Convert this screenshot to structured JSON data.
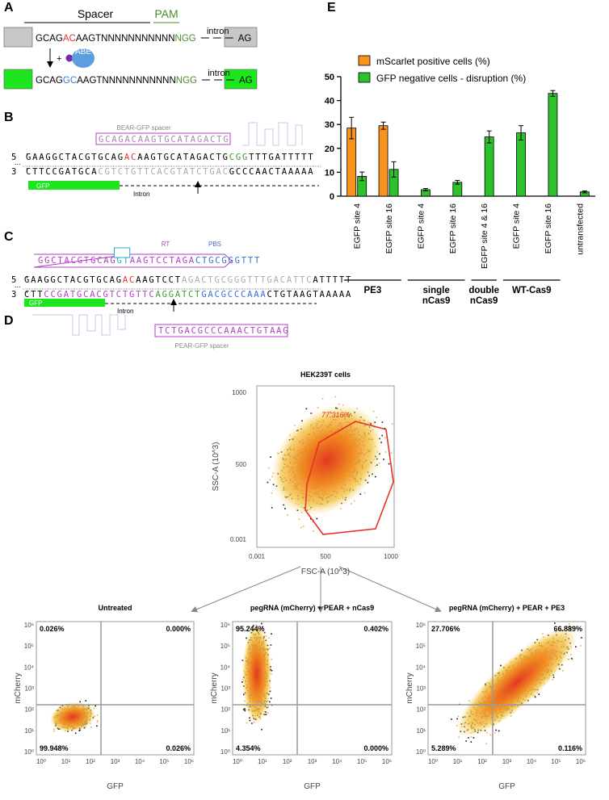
{
  "panel_labels": [
    "A",
    "B",
    "C",
    "D",
    "E"
  ],
  "panel_a": {
    "spacer": "Spacer",
    "pam": "PAM",
    "intron": "intron",
    "end": "AG",
    "plus": "+",
    "enzyme": "ABE",
    "row1": [
      {
        "text": "GCAG",
        "color": "#000000"
      },
      {
        "text": "AC",
        "color": "#e8312a"
      },
      {
        "text": "AAGTNNNNNNNNNNN",
        "color": "#000000"
      },
      {
        "text": "NGG",
        "color": "#4a8a2a"
      }
    ],
    "row2": [
      {
        "text": "GCAG",
        "color": "#000000"
      },
      {
        "text": "GC",
        "color": "#3a7fd5"
      },
      {
        "text": "AAGTNNNNNNNNNNN",
        "color": "#000000"
      },
      {
        "text": "NGG",
        "color": "#4a8a2a"
      }
    ]
  },
  "panel_b": {
    "spacer_label": "BEAR-GFP spacer",
    "spacer_seq": "GCAGACAAGTGCATAGACTG",
    "five": "5 '",
    "three": "3 '",
    "ellipsis": "...",
    "top": [
      {
        "text": "GAAGGCTACGTGCAG",
        "color": "#000000"
      },
      {
        "text": "AC",
        "color": "#e8312a"
      },
      {
        "text": "AAGTGCATAGACTG",
        "color": "#000000"
      },
      {
        "text": "CGG",
        "color": "#3a9a2a"
      },
      {
        "text": "TTTGATTTTT",
        "color": "#000000"
      }
    ],
    "bottom": [
      {
        "text": "CTTCCGATGCA",
        "color": "#000000"
      },
      {
        "text": "CGTCTGTTCACGTATCTGAC",
        "color": "#aaaaaa"
      },
      {
        "text": "GCCCAACTAAAAA",
        "color": "#000000"
      }
    ],
    "gfp": "GFP",
    "intron": "Intron"
  },
  "panel_c": {
    "rt": "RT",
    "pbs": "PBS",
    "peg": [
      {
        "text": "GGCTACGTGCAG",
        "color": "#b23fc4"
      },
      {
        "text": "GT",
        "color": "#2aa7c9"
      },
      {
        "text": "AAGTCCTAGA",
        "color": "#b23fc4"
      },
      {
        "text": "CTGCGGGTTT",
        "color": "#3a6fd5"
      }
    ],
    "five": "5 '",
    "three": "3 '",
    "ellipsis": "...",
    "top": [
      {
        "text": "GAAGGCTACGTGCAG",
        "color": "#000000"
      },
      {
        "text": "AC",
        "color": "#e8312a"
      },
      {
        "text": "AAGTCCT",
        "color": "#000000"
      },
      {
        "text": "AGACTGCGGGTTTGACATTC",
        "color": "#aaaaaa"
      },
      {
        "text": "ATTTTT",
        "color": "#000000"
      }
    ],
    "bottom": [
      {
        "text": "CTT",
        "color": "#000000"
      },
      {
        "text": "CCGATGCACGTCTGTTC",
        "color": "#b23fc4"
      },
      {
        "text": "AGGATCT",
        "color": "#3a9a2a"
      },
      {
        "text": "GACGCCCAAA",
        "color": "#3a6fd5"
      },
      {
        "text": "CTGTAAGTAAAAA",
        "color": "#000000"
      }
    ],
    "gfp": "GFP",
    "intron": "Intron",
    "pear_seq": "TCTGACGCCCAAACTGTAAG",
    "pear_label": "PEAR-GFP spacer"
  },
  "panel_d": {
    "main": {
      "title": "HEK239T cells",
      "gate": "77.316%",
      "xlabel": "FSC-A (10^3)",
      "ylabel": "SSC-A (10^3)",
      "xticks": [
        "0.001",
        "500",
        "1000"
      ],
      "yticks": [
        "0.001",
        "500",
        "1000"
      ]
    },
    "plots": [
      {
        "title": "Untreated",
        "quadrants": [
          "0.026%",
          "0.000%",
          "99.948%",
          "0.026%"
        ]
      },
      {
        "title": "pegRNA (mCherry) + PEAR + nCas9",
        "quadrants": [
          "95.244%",
          "0.402%",
          "4.354%",
          "0.000%"
        ]
      },
      {
        "title": "pegRNA (mCherry) + PEAR + PE3",
        "quadrants": [
          "27.706%",
          "66.889%",
          "5.289%",
          "0.116%"
        ]
      }
    ],
    "xlabel": "GFP",
    "ylabel": "mCherry",
    "ticks": [
      "10⁰",
      "10¹",
      "10²",
      "10³",
      "10⁴",
      "10⁵",
      "10⁶"
    ]
  },
  "chart_data": {
    "type": "bar",
    "ylim": [
      0,
      50
    ],
    "yticks": [
      0,
      10,
      20,
      30,
      40,
      50
    ],
    "categories": [
      "EGFP site 4",
      "EGFP site 16",
      "EGFP site 4",
      "EGFP site 16",
      "EGFP site 4 & 16",
      "EGFP site 4",
      "EGFP site 16",
      "untransfected"
    ],
    "series": [
      {
        "name": "mScarlet positive cells (%)",
        "color": "#f7941d",
        "values": [
          28.5,
          29.5,
          0,
          0,
          0,
          0,
          0,
          0
        ],
        "errors": [
          4.5,
          1.5,
          0,
          0,
          0,
          0,
          0,
          0
        ]
      },
      {
        "name": "GFP negative cells - disruption (%)",
        "color": "#2bc22b",
        "values": [
          8.3,
          11.2,
          2.7,
          5.8,
          24.8,
          26.5,
          43.0,
          1.8
        ],
        "errors": [
          1.8,
          3.2,
          0.5,
          0.8,
          2.5,
          3.0,
          1.2,
          0.4
        ]
      }
    ],
    "groups": [
      {
        "label": [
          "PE3"
        ],
        "size": 2
      },
      {
        "label": [
          "single",
          "nCas9"
        ],
        "size": 2
      },
      {
        "label": [
          "double",
          "nCas9"
        ],
        "size": 1
      },
      {
        "label": [
          "WT-Cas9"
        ],
        "size": 2
      }
    ]
  }
}
